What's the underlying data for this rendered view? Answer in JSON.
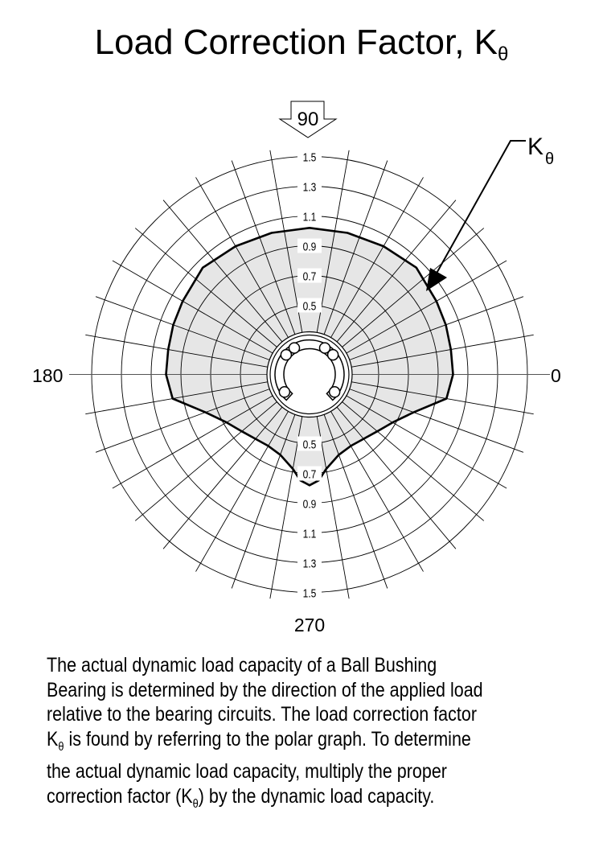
{
  "title": {
    "text": "Load Correction Factor, K",
    "subscript": "θ"
  },
  "chart_data": {
    "type": "polar-area",
    "title": "Load Correction Factor, Kθ",
    "series_label": {
      "text": "K",
      "subscript": "θ"
    },
    "radial_ticks": [
      "0.5",
      "0.7",
      "0.9",
      "1.1",
      "1.3",
      "1.5"
    ],
    "radial_rings": [
      0.3,
      0.5,
      0.7,
      0.9,
      1.1,
      1.3,
      1.5
    ],
    "radial_range": [
      0.3,
      1.5
    ],
    "angle_step_deg": 10,
    "angle_labels": {
      "0": "0",
      "90": "90",
      "180": "180",
      "270": "270"
    },
    "load_direction_arrow": "90",
    "fill_color": "#e6e6e6",
    "line_color": "#000000",
    "angles_deg": [
      0,
      10,
      20,
      30,
      45,
      60,
      75,
      90,
      105,
      120,
      135,
      150,
      160,
      170,
      180,
      190,
      200,
      210,
      220,
      230,
      240,
      250,
      260,
      265,
      270,
      275,
      280,
      290,
      300,
      310,
      320,
      330,
      340,
      350
    ],
    "values": [
      1.0,
      1.0,
      1.01,
      1.02,
      1.05,
      1.03,
      1.02,
      1.02,
      1.02,
      1.03,
      1.05,
      1.02,
      1.01,
      1.0,
      1.0,
      0.97,
      0.78,
      0.68,
      0.63,
      0.6,
      0.59,
      0.61,
      0.68,
      0.75,
      0.78,
      0.75,
      0.68,
      0.61,
      0.59,
      0.6,
      0.63,
      0.68,
      0.78,
      0.97
    ]
  },
  "paragraph": {
    "lines": [
      {
        "pre": "The actual dynamic load capacity of a Ball Bushing"
      },
      {
        "pre": "Bearing is determined by the direction of the applied load"
      },
      {
        "pre": "relative to the bearing circuits. The load correction factor"
      },
      {
        "pre": "K",
        "sub": "θ",
        "post": " is found by referring to the polar graph. To determine"
      },
      {
        "pre": "the actual dynamic load capacity, multiply the proper"
      },
      {
        "pre": "correction factor (K",
        "sub": "θ",
        "post": ") by the dynamic load capacity."
      }
    ]
  }
}
